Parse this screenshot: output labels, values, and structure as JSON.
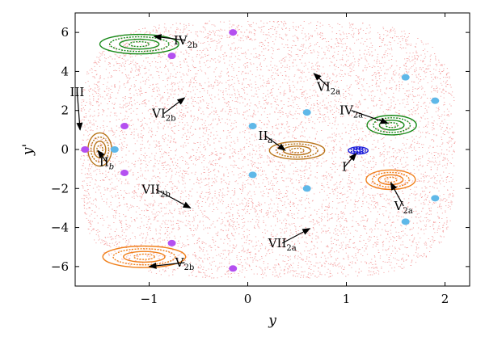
{
  "chart_data": {
    "type": "scatter",
    "title": "",
    "xlabel": "y",
    "ylabel": "y'",
    "xlim": [
      -1.75,
      2.25
    ],
    "ylim": [
      -7,
      7
    ],
    "grid": false,
    "x_ticks": [
      "−1",
      "0",
      "1",
      "2"
    ],
    "x_tick_values": [
      -1,
      0,
      1,
      2
    ],
    "y_ticks": [
      "−6",
      "−4",
      "−2",
      "0",
      "2",
      "4",
      "6"
    ],
    "y_tick_values": [
      -6,
      -4,
      -2,
      0,
      2,
      4,
      6
    ],
    "colors": {
      "chaotic_sea": "#f08080",
      "island_green": "#1a8a1a",
      "island_orange": "#f07f1a",
      "island_brown": "#b8751a",
      "island_purple": "#b450f0",
      "island_blue": "#1a1ad8",
      "island_lightblue": "#5fb8e8",
      "magenta": "#c0208a",
      "axis": "#000000"
    },
    "series": [
      {
        "kind": "chaotic-sea",
        "color": "#f08080",
        "x_range": [
          -1.7,
          2.1
        ],
        "y_range": [
          -6.6,
          6.6
        ]
      },
      {
        "kind": "island",
        "color": "#1a1ad8",
        "points": [
          {
            "x": 1.12,
            "y": -0.05,
            "rx": 0.1,
            "ry": 0.18
          }
        ]
      },
      {
        "kind": "island",
        "color": "#b8751a",
        "points": [
          {
            "x": 0.5,
            "y": -0.05,
            "rx": 0.28,
            "ry": 0.45
          }
        ]
      },
      {
        "kind": "island",
        "color": "#b8751a",
        "points": [
          {
            "x": -1.5,
            "y": 0.0,
            "rx": 0.12,
            "ry": 0.85
          }
        ]
      },
      {
        "kind": "island",
        "color": "#1a8a1a",
        "points": [
          {
            "x": 1.46,
            "y": 1.25,
            "rx": 0.25,
            "ry": 0.5
          }
        ]
      },
      {
        "kind": "island",
        "color": "#f07f1a",
        "points": [
          {
            "x": 1.45,
            "y": -1.55,
            "rx": 0.25,
            "ry": 0.5
          }
        ]
      },
      {
        "kind": "island",
        "color": "#1a8a1a",
        "points": [
          {
            "x": -1.1,
            "y": 5.4,
            "rx": 0.4,
            "ry": 0.5
          }
        ]
      },
      {
        "kind": "island",
        "color": "#f07f1a",
        "points": [
          {
            "x": -1.05,
            "y": -5.5,
            "rx": 0.42,
            "ry": 0.55
          }
        ]
      },
      {
        "kind": "island",
        "color": "#b450f0",
        "points": [
          {
            "x": -0.15,
            "y": 6.0
          },
          {
            "x": -0.15,
            "y": -6.1
          },
          {
            "x": -0.77,
            "y": 4.8
          },
          {
            "x": -0.77,
            "y": -4.8
          },
          {
            "x": -1.25,
            "y": 1.2
          },
          {
            "x": -1.25,
            "y": -1.2
          },
          {
            "x": -1.65,
            "y": 0.0
          }
        ]
      },
      {
        "kind": "island",
        "color": "#5fb8e8",
        "points": [
          {
            "x": 0.05,
            "y": 1.2
          },
          {
            "x": 0.05,
            "y": -1.3
          },
          {
            "x": 0.6,
            "y": 1.9
          },
          {
            "x": 0.6,
            "y": -2.0
          },
          {
            "x": -1.35,
            "y": 0.0
          },
          {
            "x": 1.6,
            "y": 3.7
          },
          {
            "x": 1.6,
            "y": -3.7
          },
          {
            "x": 1.9,
            "y": 2.5
          },
          {
            "x": 1.9,
            "y": -2.5
          }
        ]
      }
    ],
    "annotations": [
      {
        "id": "I",
        "main": "I",
        "sub": "",
        "text_x": 0.98,
        "text_y": -0.9,
        "tip_x": 1.1,
        "tip_y": -0.2
      },
      {
        "id": "IIa",
        "main": "II",
        "sub": "a",
        "text_x": 0.18,
        "text_y": 0.7,
        "tip_x": 0.38,
        "tip_y": -0.05
      },
      {
        "id": "IIb",
        "main": "II",
        "sub": "b",
        "text_x": -1.43,
        "text_y": -0.65,
        "tip_x": -1.52,
        "tip_y": -0.05
      },
      {
        "id": "III",
        "main": "III",
        "sub": "",
        "text_x": -1.73,
        "text_y": 2.95,
        "tip_x": -1.7,
        "tip_y": 1.0
      },
      {
        "id": "IV2a",
        "main": "IV",
        "sub": "2a",
        "text_x": 1.05,
        "text_y": 2.0,
        "tip_x": 1.42,
        "tip_y": 1.35
      },
      {
        "id": "IV2b",
        "main": "IV",
        "sub": "2b",
        "text_x": -0.63,
        "text_y": 5.6,
        "tip_x": -0.95,
        "tip_y": 5.8
      },
      {
        "id": "V2a",
        "main": "V",
        "sub": "2a",
        "text_x": 1.58,
        "text_y": -2.9,
        "tip_x": 1.45,
        "tip_y": -1.7
      },
      {
        "id": "V2b",
        "main": "V",
        "sub": "2b",
        "text_x": -0.64,
        "text_y": -5.8,
        "tip_x": -1.0,
        "tip_y": -6.0
      },
      {
        "id": "VI2a",
        "main": "VI",
        "sub": "2a",
        "text_x": 0.82,
        "text_y": 3.2,
        "tip_x": 0.67,
        "tip_y": 3.9
      },
      {
        "id": "VI2b",
        "main": "VI",
        "sub": "2b",
        "text_x": -0.85,
        "text_y": 1.85,
        "tip_x": -0.64,
        "tip_y": 2.65
      },
      {
        "id": "VII2a",
        "main": "VII",
        "sub": "2a",
        "text_x": 0.35,
        "text_y": -4.8,
        "tip_x": 0.63,
        "tip_y": -4.05
      },
      {
        "id": "VII2b",
        "main": "VII",
        "sub": "2b",
        "text_x": -0.93,
        "text_y": -2.05,
        "tip_x": -0.58,
        "tip_y": -3.0
      }
    ]
  }
}
